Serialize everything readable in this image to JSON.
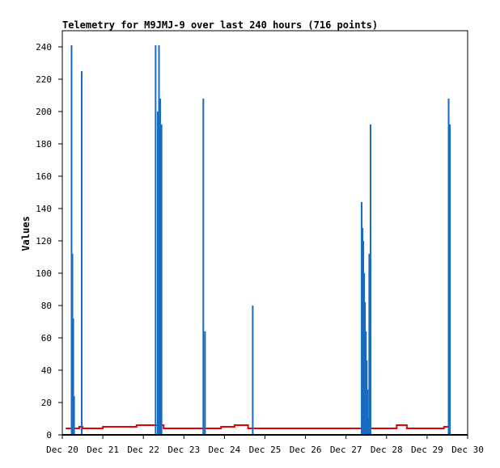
{
  "chart_data": {
    "type": "bar",
    "title": "Telemetry for M9JMJ-9 over last 240 hours (716 points)",
    "xlabel": "",
    "ylabel": "Values",
    "x_range": [
      "2021-12-20T00:00",
      "2021-12-30T00:00"
    ],
    "ylim": [
      0,
      250
    ],
    "x_ticks": [
      "Dec 20",
      "Dec 21",
      "Dec 22",
      "Dec 23",
      "Dec 24",
      "Dec 25",
      "Dec 26",
      "Dec 27",
      "Dec 28",
      "Dec 29",
      "Dec 30"
    ],
    "y_ticks": [
      0,
      20,
      40,
      60,
      80,
      100,
      120,
      140,
      160,
      180,
      200,
      220,
      240
    ],
    "grid": false,
    "series": [
      {
        "type": "bar",
        "color": "#1a6bbf",
        "points": [
          {
            "x": "2021-12-20T05:30",
            "y": 241
          },
          {
            "x": "2021-12-20T06:00",
            "y": 112
          },
          {
            "x": "2021-12-20T06:30",
            "y": 72
          },
          {
            "x": "2021-12-20T07:00",
            "y": 24
          },
          {
            "x": "2021-12-20T11:30",
            "y": 225
          },
          {
            "x": "2021-12-22T07:15",
            "y": 241
          },
          {
            "x": "2021-12-22T08:30",
            "y": 200
          },
          {
            "x": "2021-12-22T09:15",
            "y": 241
          },
          {
            "x": "2021-12-22T10:00",
            "y": 208
          },
          {
            "x": "2021-12-22T10:45",
            "y": 192
          },
          {
            "x": "2021-12-23T11:30",
            "y": 208
          },
          {
            "x": "2021-12-23T12:30",
            "y": 64
          },
          {
            "x": "2021-12-24T16:45",
            "y": 80
          },
          {
            "x": "2021-12-27T09:15",
            "y": 144
          },
          {
            "x": "2021-12-27T09:45",
            "y": 128
          },
          {
            "x": "2021-12-27T10:15",
            "y": 120
          },
          {
            "x": "2021-12-27T10:45",
            "y": 100
          },
          {
            "x": "2021-12-27T11:15",
            "y": 82
          },
          {
            "x": "2021-12-27T11:45",
            "y": 64
          },
          {
            "x": "2021-12-27T12:15",
            "y": 46
          },
          {
            "x": "2021-12-27T12:45",
            "y": 28
          },
          {
            "x": "2021-12-27T13:15",
            "y": 10
          },
          {
            "x": "2021-12-27T13:45",
            "y": 112
          },
          {
            "x": "2021-12-27T14:30",
            "y": 192
          },
          {
            "x": "2021-12-29T12:45",
            "y": 208
          },
          {
            "x": "2021-12-29T13:30",
            "y": 192
          }
        ]
      },
      {
        "type": "step-line",
        "color": "#e60000",
        "points": [
          {
            "x": "2021-12-20T02:00",
            "y": 4
          },
          {
            "x": "2021-12-20T10:00",
            "y": 5
          },
          {
            "x": "2021-12-20T12:00",
            "y": 4
          },
          {
            "x": "2021-12-21T00:00",
            "y": 5
          },
          {
            "x": "2021-12-21T20:00",
            "y": 6
          },
          {
            "x": "2021-12-22T12:00",
            "y": 4
          },
          {
            "x": "2021-12-23T12:00",
            "y": 4
          },
          {
            "x": "2021-12-23T22:00",
            "y": 5
          },
          {
            "x": "2021-12-24T06:00",
            "y": 6
          },
          {
            "x": "2021-12-24T14:00",
            "y": 4
          },
          {
            "x": "2021-12-25T00:00",
            "y": 4
          },
          {
            "x": "2021-12-26T12:00",
            "y": 4
          },
          {
            "x": "2021-12-28T06:00",
            "y": 6
          },
          {
            "x": "2021-12-28T12:00",
            "y": 4
          },
          {
            "x": "2021-12-29T10:00",
            "y": 5
          },
          {
            "x": "2021-12-29T14:00",
            "y": 5
          }
        ]
      }
    ]
  }
}
